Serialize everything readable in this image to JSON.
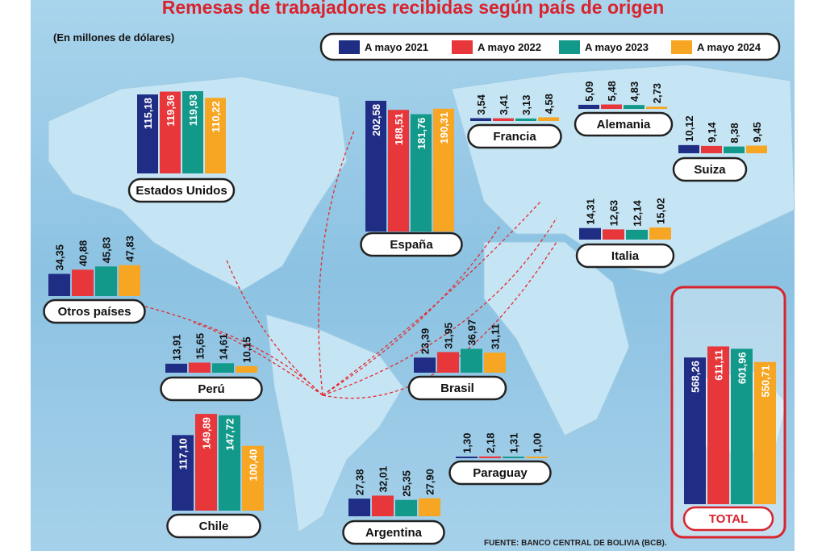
{
  "chart_data": {
    "type": "bar",
    "title": "Remesas de trabajadores recibidas según país de origen",
    "subtitle": "(En millones de dólares)",
    "source": "FUENTE: BANCO CENTRAL DE BOLIVIA (BCB).",
    "categories": [
      "Estados Unidos",
      "España",
      "Francia",
      "Alemania",
      "Suiza",
      "Italia",
      "Otros países",
      "Perú",
      "Brasil",
      "Paraguay",
      "Chile",
      "Argentina",
      "TOTAL"
    ],
    "series": [
      {
        "name": "A mayo 2021",
        "color": "#1f2d84",
        "values": [
          115.18,
          202.58,
          3.54,
          5.09,
          10.12,
          14.31,
          34.35,
          13.91,
          23.39,
          1.3,
          117.1,
          27.38,
          568.26
        ],
        "value_labels": [
          "115,18",
          "202,58",
          "3,54",
          "5,09",
          "10,12",
          "14,31",
          "34,35",
          "13,91",
          "23,39",
          "1,30",
          "117,10",
          "27,38",
          "568,26"
        ]
      },
      {
        "name": "A mayo 2022",
        "color": "#e8373b",
        "values": [
          119.36,
          188.51,
          3.41,
          5.48,
          9.14,
          12.63,
          40.88,
          15.65,
          31.95,
          2.18,
          149.89,
          32.01,
          611.11
        ],
        "value_labels": [
          "119,36",
          "188,51",
          "3,41",
          "5,48",
          "9,14",
          "12,63",
          "40,88",
          "15,65",
          "31,95",
          "2,18",
          "149,89",
          "32,01",
          "611,11"
        ]
      },
      {
        "name": "A mayo 2023",
        "color": "#12998a",
        "values": [
          119.93,
          181.76,
          3.13,
          4.83,
          8.38,
          12.14,
          45.83,
          14.61,
          36.97,
          1.31,
          147.72,
          25.35,
          601.96
        ],
        "value_labels": [
          "119,93",
          "181,76",
          "3,13",
          "4,83",
          "8,38",
          "12,14",
          "45,83",
          "14,61",
          "36,97",
          "1,31",
          "147,72",
          "25,35",
          "601,96"
        ]
      },
      {
        "name": "A mayo 2024",
        "color": "#f6a623",
        "values": [
          110.22,
          190.31,
          4.58,
          2.73,
          9.45,
          15.02,
          47.83,
          10.15,
          31.11,
          1.0,
          100.4,
          27.9,
          550.71
        ],
        "value_labels": [
          "110,22",
          "190,31",
          "4,58",
          "2,73",
          "9,45",
          "15,02",
          "47,83",
          "10,15",
          "31,11",
          "1,00",
          "100,40",
          "27,90",
          "550,71"
        ]
      }
    ]
  }
}
